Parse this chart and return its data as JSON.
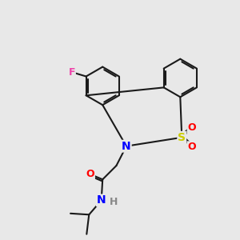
{
  "bg_color": "#e8e8e8",
  "atom_colors": {
    "F": "#ee44aa",
    "N": "#0000ff",
    "S": "#cccc00",
    "O": "#ff0000",
    "H": "#888888",
    "C": "#1a1a1a"
  },
  "bond_color": "#1a1a1a",
  "bond_width": 1.5
}
